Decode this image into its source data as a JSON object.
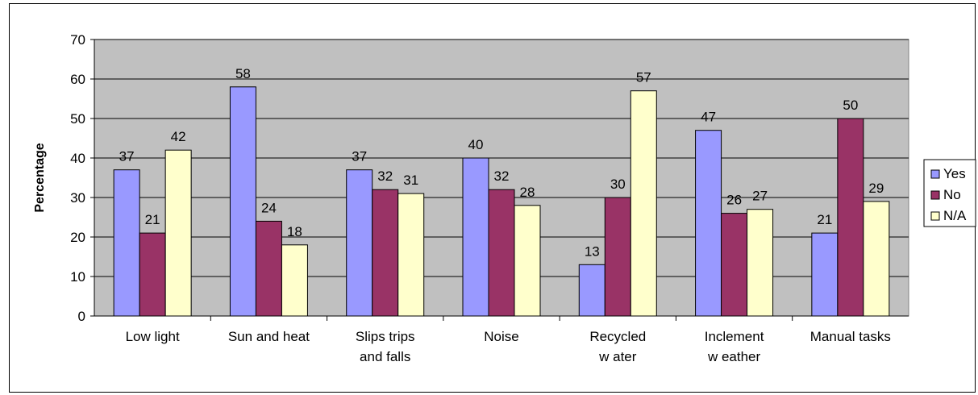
{
  "chart_data": {
    "type": "bar",
    "title": "",
    "xlabel": "",
    "ylabel": "Percentage",
    "ylim": [
      0,
      70
    ],
    "yticks": [
      0,
      10,
      20,
      30,
      40,
      50,
      60,
      70
    ],
    "grid": true,
    "legend_position": "right",
    "categories": [
      [
        "Low  light"
      ],
      [
        "Sun and heat"
      ],
      [
        "Slips trips",
        "and falls"
      ],
      [
        "Noise"
      ],
      [
        "Recycled",
        "w ater"
      ],
      [
        "Inclement",
        "w eather"
      ],
      [
        "Manual tasks"
      ]
    ],
    "series": [
      {
        "name": "Yes",
        "color": "#9999ff",
        "values": [
          37,
          58,
          37,
          40,
          13,
          47,
          21
        ]
      },
      {
        "name": "No",
        "color": "#993366",
        "values": [
          21,
          24,
          32,
          32,
          30,
          26,
          50
        ]
      },
      {
        "name": "N/A",
        "color": "#ffffcc",
        "values": [
          42,
          18,
          31,
          28,
          57,
          27,
          29
        ]
      }
    ],
    "plot_background": "#c0c0c0"
  }
}
